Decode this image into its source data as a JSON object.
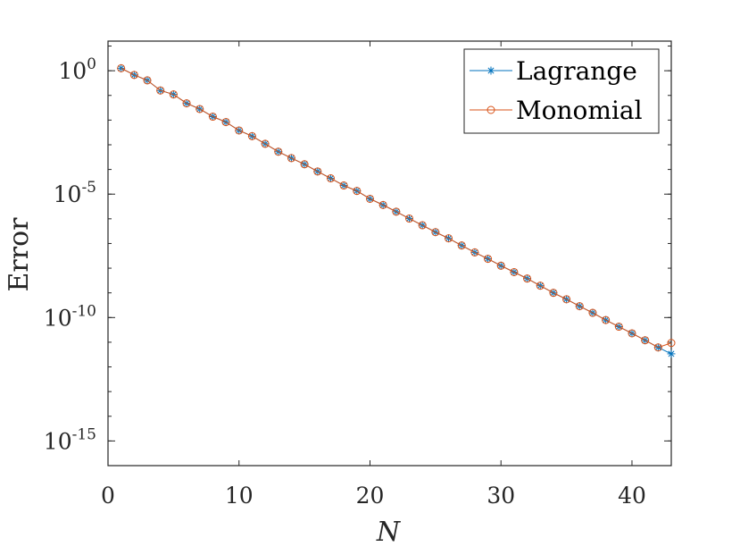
{
  "chart_data": {
    "type": "line",
    "title": "",
    "xlabel": "N",
    "ylabel": "Error",
    "xlim": [
      0,
      43
    ],
    "ylim_log10": [
      -16,
      1.2
    ],
    "yscale": "log",
    "grid": false,
    "legend_position": "top-right",
    "x_ticks": [
      {
        "value": 0,
        "label": "0"
      },
      {
        "value": 10,
        "label": "10"
      },
      {
        "value": 20,
        "label": "20"
      },
      {
        "value": 30,
        "label": "30"
      },
      {
        "value": 40,
        "label": "40"
      }
    ],
    "y_ticks": [
      {
        "log10": 0,
        "base": "10",
        "exp": "0"
      },
      {
        "log10": -5,
        "base": "10",
        "exp": "-5"
      },
      {
        "log10": -10,
        "base": "10",
        "exp": "-10"
      },
      {
        "log10": -15,
        "base": "10",
        "exp": "-15"
      }
    ],
    "x": [
      1,
      2,
      3,
      4,
      5,
      6,
      7,
      8,
      9,
      10,
      11,
      12,
      13,
      14,
      15,
      16,
      17,
      18,
      19,
      20,
      21,
      22,
      23,
      24,
      25,
      26,
      27,
      28,
      29,
      30,
      31,
      32,
      33,
      34,
      35,
      36,
      37,
      38,
      39,
      40,
      41,
      42,
      43
    ],
    "series": [
      {
        "name": "Lagrange",
        "color": "#0072BD",
        "marker": "asterisk",
        "log10_values": [
          0.1,
          -0.17,
          -0.39,
          -0.8,
          -0.96,
          -1.32,
          -1.55,
          -1.86,
          -2.08,
          -2.42,
          -2.65,
          -2.96,
          -3.28,
          -3.54,
          -3.79,
          -4.08,
          -4.36,
          -4.65,
          -4.87,
          -5.19,
          -5.44,
          -5.71,
          -5.99,
          -6.26,
          -6.54,
          -6.79,
          -7.08,
          -7.36,
          -7.62,
          -7.9,
          -8.16,
          -8.42,
          -8.71,
          -9.0,
          -9.26,
          -9.54,
          -9.81,
          -10.1,
          -10.37,
          -10.64,
          -10.92,
          -11.21,
          -11.47
        ]
      },
      {
        "name": "Monomial",
        "color": "#D95319",
        "marker": "circle",
        "log10_values": [
          0.1,
          -0.17,
          -0.39,
          -0.8,
          -0.96,
          -1.32,
          -1.55,
          -1.86,
          -2.08,
          -2.42,
          -2.65,
          -2.96,
          -3.28,
          -3.54,
          -3.79,
          -4.08,
          -4.36,
          -4.65,
          -4.87,
          -5.19,
          -5.44,
          -5.71,
          -5.99,
          -6.26,
          -6.54,
          -6.79,
          -7.08,
          -7.36,
          -7.62,
          -7.9,
          -8.16,
          -8.42,
          -8.71,
          -9.0,
          -9.26,
          -9.54,
          -9.81,
          -10.1,
          -10.37,
          -10.64,
          -10.92,
          -11.21,
          -11.03
        ]
      }
    ]
  }
}
